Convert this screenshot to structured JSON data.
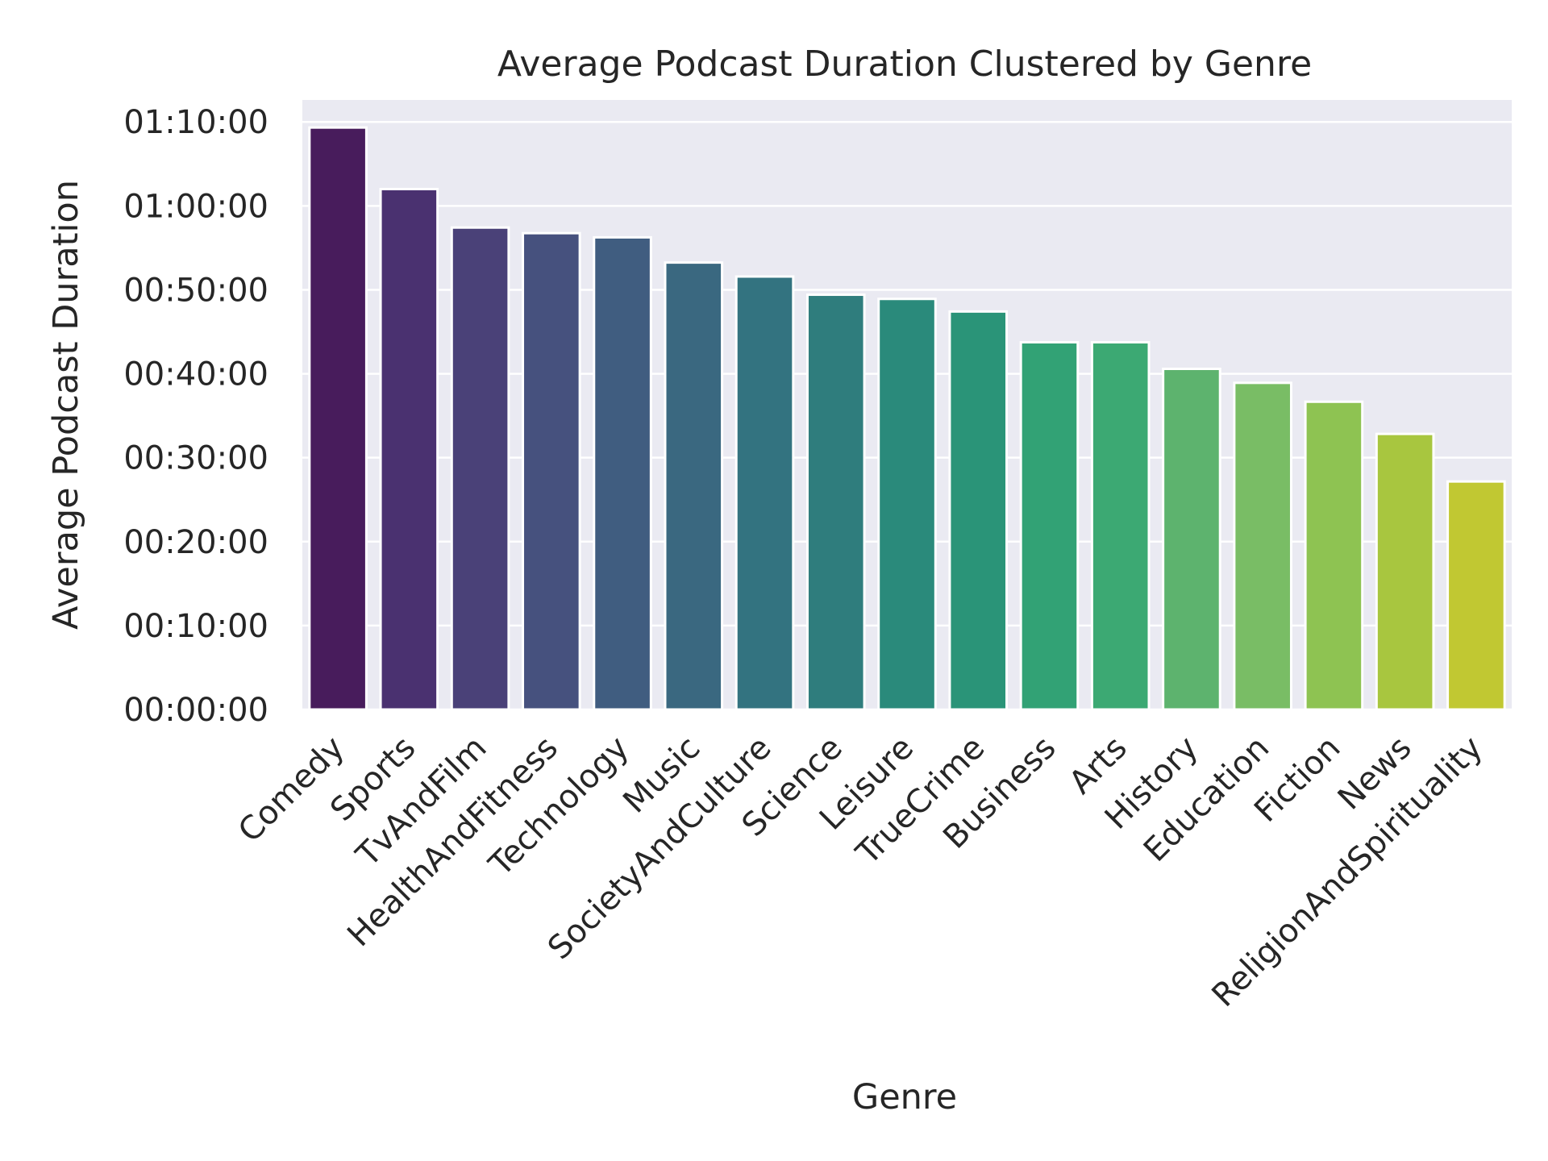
{
  "chart_data": {
    "type": "bar",
    "title": "Average Podcast Duration Clustered by Genre",
    "xlabel": "Genre",
    "ylabel": "Average Podcast Duration",
    "y_unit": "seconds",
    "categories": [
      "Comedy",
      "Sports",
      "TvAndFilm",
      "HealthAndFitness",
      "Technology",
      "Music",
      "SocietyAndCulture",
      "Science",
      "Leisure",
      "TrueCrime",
      "Business",
      "Arts",
      "History",
      "Education",
      "Fiction",
      "News",
      "ReligionAndSpirituality"
    ],
    "values": [
      4160,
      3720,
      3445,
      3405,
      3375,
      3195,
      3095,
      2965,
      2935,
      2845,
      2625,
      2625,
      2435,
      2335,
      2200,
      1970,
      1630
    ],
    "yticks": [
      0,
      600,
      1200,
      1800,
      2400,
      3000,
      3600,
      4200
    ],
    "ytick_labels": [
      "00:00:00",
      "00:10:00",
      "00:20:00",
      "00:30:00",
      "00:40:00",
      "00:50:00",
      "01:00:00",
      "01:10:00"
    ],
    "ylim": [
      0,
      4357
    ],
    "grid": true,
    "x_tick_rotation": 45,
    "background_color": "#eaeaf2",
    "colors": [
      "#481c5c",
      "#4a3170",
      "#4a4178",
      "#46517e",
      "#405d80",
      "#3a6880",
      "#337380",
      "#2f7d7d",
      "#2a8a7b",
      "#2a9478",
      "#32a275",
      "#3ca973",
      "#5db36e",
      "#79bd65",
      "#8ec352",
      "#a8c63f",
      "#c1c832"
    ]
  }
}
